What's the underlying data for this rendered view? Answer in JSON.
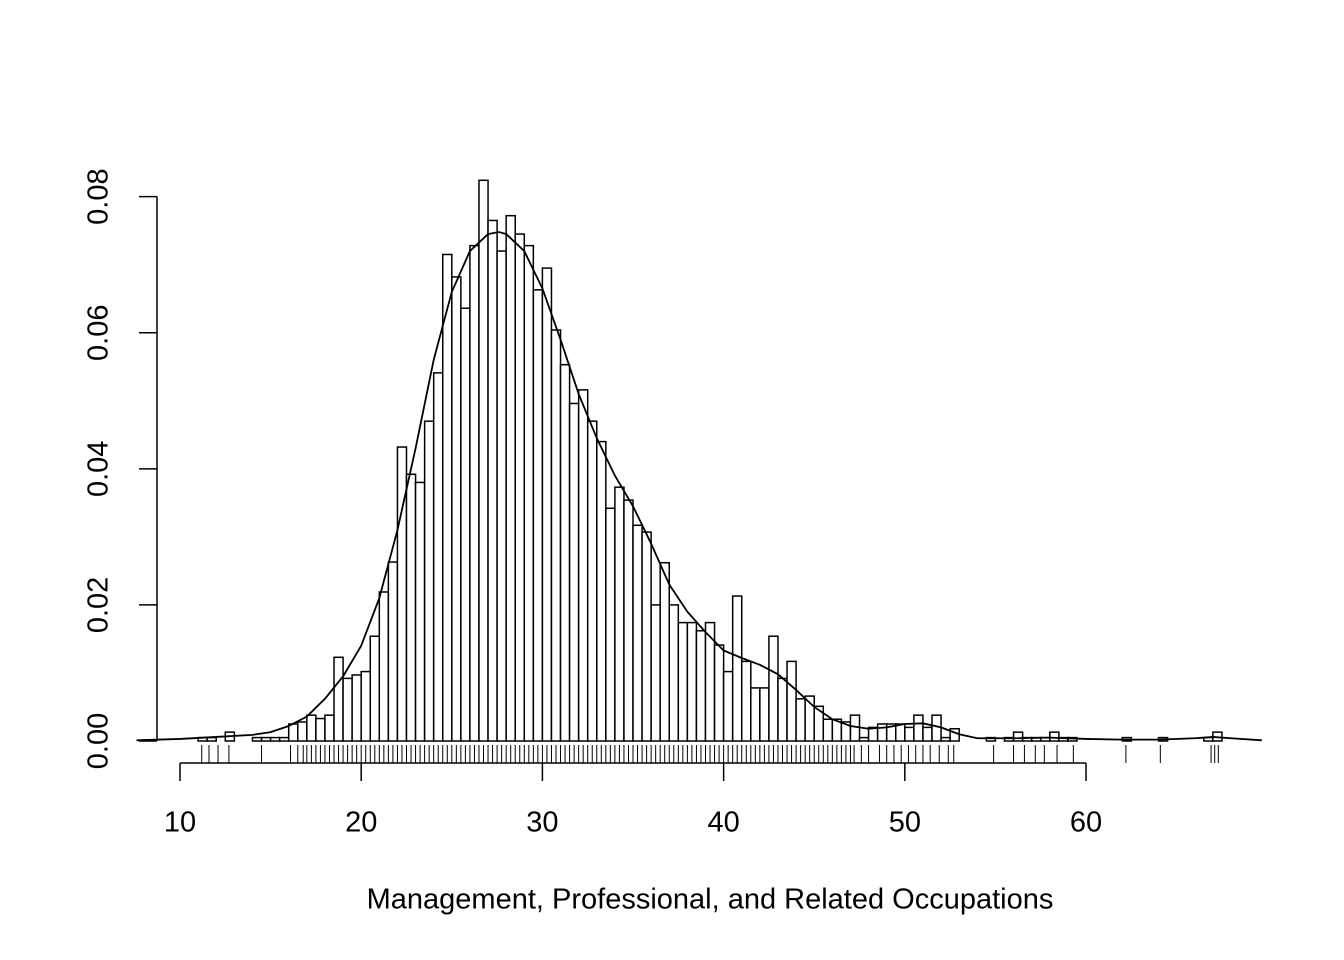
{
  "chart_data": {
    "type": "histogram",
    "xlabel": "Management, Professional, and Related Occupations",
    "bins": [
      11,
      11.5,
      12,
      12.5,
      13,
      13.5,
      14,
      14.5,
      15,
      15.5,
      16,
      16.5,
      17,
      17.5,
      18,
      18.5,
      19,
      19.5,
      20,
      20.5,
      21,
      21.5,
      22,
      22.5,
      23,
      23.5,
      24,
      24.5,
      25,
      25.5,
      26,
      26.5,
      27,
      27.5,
      28,
      28.5,
      29,
      29.5,
      30,
      30.5,
      31,
      31.5,
      32,
      32.5,
      33,
      33.5,
      34,
      34.5,
      35,
      35.5,
      36,
      36.5,
      37,
      37.5,
      38,
      38.5,
      39,
      39.5,
      40,
      40.5,
      41,
      41.5,
      42,
      42.5,
      43,
      43.5,
      44,
      44.5,
      45,
      45.5,
      46,
      46.5,
      47,
      47.5,
      48,
      48.5,
      49,
      49.5,
      50,
      50.5,
      51,
      51.5,
      52,
      52.5,
      53,
      53.5,
      54,
      54.5,
      55,
      55.5,
      56,
      56.5,
      57,
      57.5,
      58,
      58.5,
      59,
      59.5,
      60,
      60.5,
      61,
      61.5,
      62,
      62.5,
      63,
      63.5,
      64,
      64.5,
      65,
      65.5,
      66,
      66.5,
      67,
      67.5
    ],
    "values": [
      0.0005,
      0.0005,
      0,
      0.0013,
      0,
      0,
      0.0005,
      0.0005,
      0.0005,
      0.0005,
      0.0025,
      0.0028,
      0.0038,
      0.0033,
      0.0038,
      0.0123,
      0.0092,
      0.0097,
      0.0102,
      0.0154,
      0.0219,
      0.0263,
      0.0432,
      0.0392,
      0.038,
      0.047,
      0.0541,
      0.0715,
      0.0682,
      0.0636,
      0.0728,
      0.0824,
      0.0765,
      0.072,
      0.0772,
      0.0745,
      0.0728,
      0.0663,
      0.0695,
      0.0604,
      0.0553,
      0.0496,
      0.0516,
      0.047,
      0.044,
      0.0342,
      0.0373,
      0.0354,
      0.0317,
      0.0307,
      0.02,
      0.0262,
      0.02,
      0.0174,
      0.0174,
      0.0162,
      0.0174,
      0.0141,
      0.0102,
      0.0213,
      0.0117,
      0.0078,
      0.0078,
      0.0154,
      0.0092,
      0.0117,
      0.0062,
      0.0066,
      0.0051,
      0.0032,
      0.0032,
      0.0028,
      0.0038,
      0.0005,
      0.002,
      0.0025,
      0.0025,
      0.0025,
      0.002,
      0.0038,
      0.002,
      0.0038,
      0.0005,
      0.0018,
      0,
      0,
      0,
      0.0005,
      0,
      0.0005,
      0.0013,
      0.0005,
      0.0005,
      0.0005,
      0.0013,
      0.0005,
      0.0005,
      0,
      0,
      0,
      0,
      0,
      0.0005,
      0,
      0,
      0,
      0.0005,
      0,
      0,
      0,
      0,
      0.0005,
      0.0013
    ],
    "density": {
      "x": [
        7.6,
        10,
        12,
        14,
        15,
        16,
        17,
        18,
        19,
        20,
        21,
        22,
        23,
        24,
        25,
        26,
        27,
        27.6,
        28,
        29,
        30,
        31,
        32,
        33,
        34,
        35,
        36,
        37,
        38,
        39,
        40,
        41,
        42,
        43,
        44,
        45,
        46,
        47,
        48,
        49,
        50,
        51,
        52,
        53,
        54,
        56,
        58,
        60,
        62,
        64,
        66,
        67,
        68,
        69.7
      ],
      "values": [
        0.0001,
        0.0003,
        0.0006,
        0.0009,
        0.0013,
        0.0022,
        0.0036,
        0.0062,
        0.0095,
        0.014,
        0.021,
        0.031,
        0.043,
        0.056,
        0.066,
        0.072,
        0.0745,
        0.0748,
        0.0745,
        0.072,
        0.0665,
        0.059,
        0.051,
        0.0445,
        0.039,
        0.0345,
        0.029,
        0.023,
        0.019,
        0.016,
        0.0133,
        0.0122,
        0.0112,
        0.0098,
        0.0075,
        0.005,
        0.0032,
        0.0022,
        0.0018,
        0.002,
        0.0025,
        0.0026,
        0.002,
        0.001,
        0.0004,
        0.0004,
        0.0005,
        0.0003,
        0.0002,
        0.0002,
        0.0004,
        0.0006,
        0.0004,
        0.0001
      ]
    },
    "rug": [
      11.2,
      11.6,
      12.1,
      12.7,
      14.5,
      16.1,
      16.5,
      16.8,
      17,
      17.25,
      17.5,
      17.75,
      18,
      18.25,
      18.5,
      18.75,
      19,
      19.25,
      19.5,
      19.75,
      20,
      20.25,
      20.5,
      20.75,
      21,
      21.25,
      21.5,
      21.75,
      22,
      22.25,
      22.5,
      22.75,
      23,
      23.25,
      23.5,
      23.75,
      24,
      24.25,
      24.5,
      24.75,
      25,
      25.25,
      25.5,
      25.75,
      26,
      26.25,
      26.5,
      26.75,
      27,
      27.25,
      27.5,
      27.75,
      28,
      28.25,
      28.5,
      28.75,
      29,
      29.25,
      29.5,
      29.75,
      30,
      30.25,
      30.5,
      30.75,
      31,
      31.25,
      31.5,
      31.75,
      32,
      32.25,
      32.5,
      32.75,
      33,
      33.25,
      33.5,
      33.75,
      34,
      34.25,
      34.5,
      34.75,
      35,
      35.25,
      35.5,
      35.75,
      36,
      36.25,
      36.5,
      36.75,
      37,
      37.25,
      37.5,
      37.75,
      38,
      38.25,
      38.5,
      38.75,
      39,
      39.25,
      39.5,
      39.75,
      40,
      40.25,
      40.5,
      40.75,
      41,
      41.25,
      41.5,
      41.75,
      42,
      42.25,
      42.5,
      42.75,
      43,
      43.25,
      43.5,
      43.75,
      44,
      44.25,
      44.5,
      44.75,
      45,
      45.25,
      45.5,
      45.75,
      46,
      46.25,
      46.5,
      46.75,
      47,
      47.2,
      47.6,
      48,
      48.6,
      49,
      49.4,
      49.8,
      50.2,
      50.6,
      51,
      51.4,
      51.9,
      52.4,
      52.7,
      54.9,
      56,
      56.6,
      57.2,
      57.7,
      58.4,
      59.3,
      62.2,
      64.1,
      66.9,
      67.1,
      67.3
    ],
    "xlim": [
      7.6,
      69.7
    ],
    "ylim": [
      0,
      0.0824
    ],
    "xticks": [
      10,
      20,
      30,
      40,
      50,
      60
    ],
    "yticks": [
      {
        "value": 0,
        "label": "0.00"
      },
      {
        "value": 0.02,
        "label": "0.02"
      },
      {
        "value": 0.04,
        "label": "0.04"
      },
      {
        "value": 0.06,
        "label": "0.06"
      },
      {
        "value": 0.08,
        "label": "0.08"
      }
    ],
    "color": "#ffffff",
    "edge_color": "#000000",
    "grid": false
  }
}
